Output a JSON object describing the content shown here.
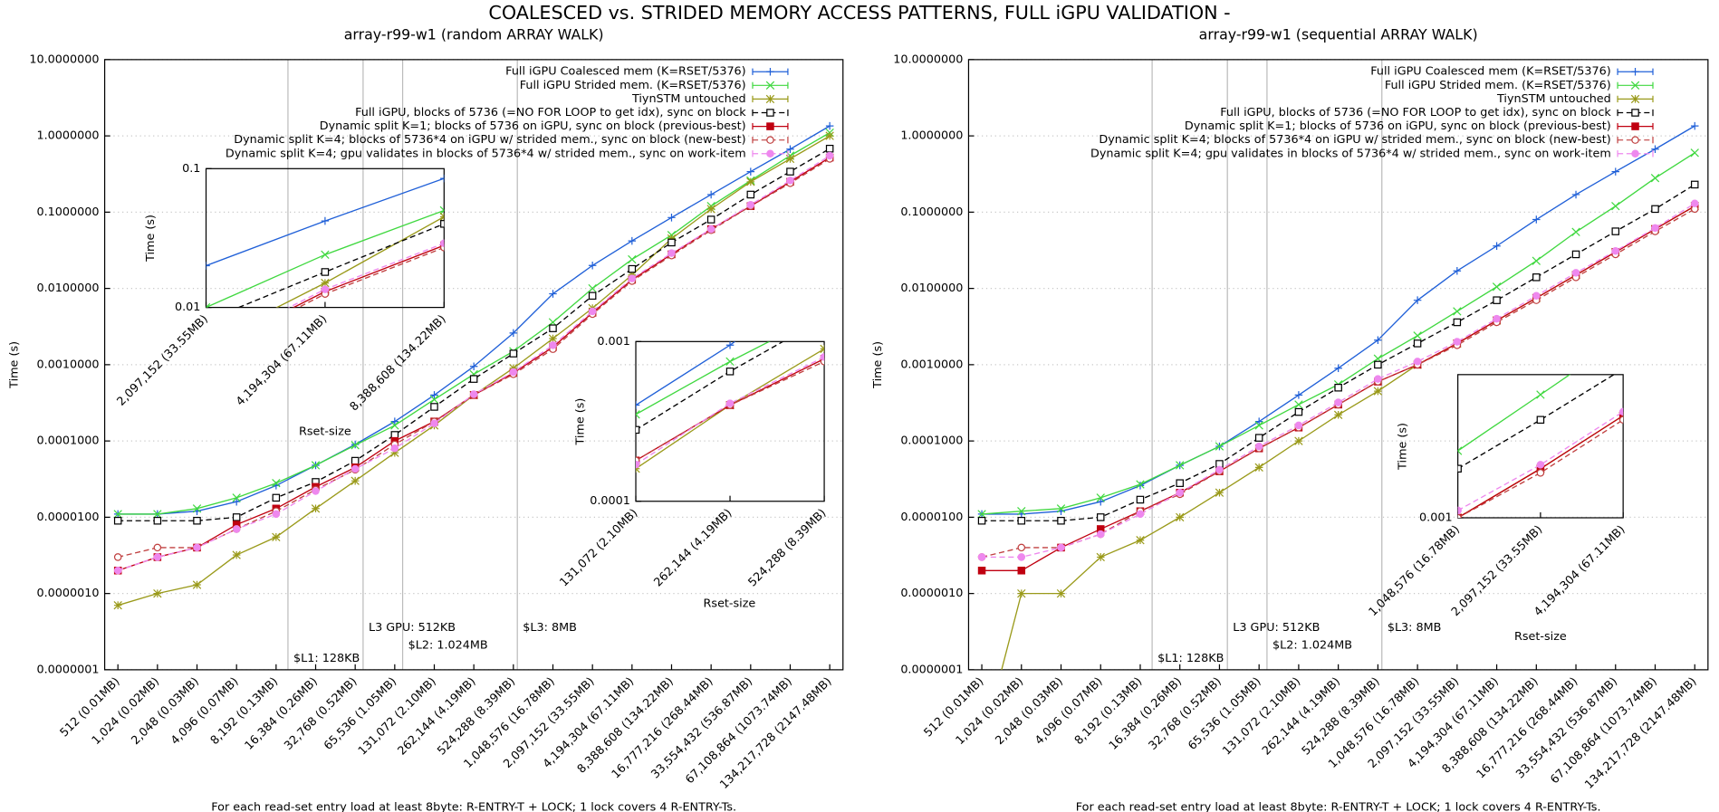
{
  "title": "COALESCED vs. STRIDED MEMORY ACCESS PATTERNS, FULL iGPU VALIDATION -",
  "chart_data": [
    {
      "type": "line",
      "title": "array-r99-w1 (random ARRAY WALK)",
      "xlabel": "For each read-set entry load at least 8byte: R-ENTRY-T + LOCK; 1 lock covers 4 R-ENTRY-Ts.",
      "ylabel": "Time (s)",
      "log_y": true,
      "grid": true,
      "legend": "top-right",
      "ylim": [
        1e-07,
        10
      ],
      "yticks": [
        {
          "value": 10,
          "label": "10.0000000"
        },
        {
          "value": 1,
          "label": "1.0000000"
        },
        {
          "value": 0.1,
          "label": "0.1000000"
        },
        {
          "value": 0.01,
          "label": "0.0100000"
        },
        {
          "value": 0.001,
          "label": "0.0010000"
        },
        {
          "value": 0.0001,
          "label": "0.0001000"
        },
        {
          "value": 1e-05,
          "label": "0.0000100"
        },
        {
          "value": 1e-06,
          "label": "0.0000010"
        },
        {
          "value": 1e-07,
          "label": "0.0000001"
        }
      ],
      "categories": [
        "512 (0.01MB)",
        "1,024 (0.02MB)",
        "2,048 (0.03MB)",
        "4,096 (0.07MB)",
        "8,192 (0.13MB)",
        "16,384 (0.26MB)",
        "32,768 (0.52MB)",
        "65,536 (1.05MB)",
        "131,072 (2.10MB)",
        "262,144 (4.19MB)",
        "524,288 (8.39MB)",
        "1,048,576 (16.78MB)",
        "2,097,152 (33.55MB)",
        "4,194,304 (67.11MB)",
        "8,388,608 (134.22MB)",
        "16,777,216 (268.44MB)",
        "33,554,432 (536.87MB)",
        "67,108,864 (1073.74MB)",
        "134,217,728 (2147.48MB)"
      ],
      "annotations": [
        {
          "x": 4.3,
          "text": "$L1: 128KB"
        },
        {
          "x": 6.2,
          "text": "L3 GPU: 512KB"
        },
        {
          "x": 7.2,
          "text": "$L2: 1.024MB"
        },
        {
          "x": 10.1,
          "text": "$L3: 8MB"
        }
      ],
      "series": [
        {
          "name": "Full iGPU Coalesced mem (K=RSET/5376)",
          "color": "#2060d8",
          "marker": "plus",
          "dash": false,
          "values": [
            1.1e-05,
            1.1e-05,
            1.2e-05,
            1.6e-05,
            2.6e-05,
            4.8e-05,
            9e-05,
            0.00018,
            0.0004,
            0.00095,
            0.0026,
            0.0085,
            0.02,
            0.042,
            0.085,
            0.17,
            0.34,
            0.67,
            1.35
          ]
        },
        {
          "name": "Full iGPU Strided mem. (K=RSET/5376)",
          "color": "#40d840",
          "marker": "cross",
          "dash": false,
          "values": [
            1.1e-05,
            1.1e-05,
            1.3e-05,
            1.8e-05,
            2.8e-05,
            4.8e-05,
            8.8e-05,
            0.00016,
            0.00035,
            0.00075,
            0.0015,
            0.0036,
            0.01,
            0.024,
            0.05,
            0.12,
            0.26,
            0.55,
            1.1
          ]
        },
        {
          "name": "TiynSTM untouched",
          "color": "#9a9a1a",
          "marker": "star",
          "dash": false,
          "values": [
            7e-07,
            1e-06,
            1.3e-06,
            3.2e-06,
            5.5e-06,
            1.3e-05,
            3e-05,
            7e-05,
            0.00016,
            0.0004,
            0.0009,
            0.0022,
            0.0055,
            0.015,
            0.045,
            0.11,
            0.25,
            0.5,
            1.0
          ]
        },
        {
          "name": "Full iGPU, blocks of 5736 (=NO FOR LOOP to get idx), sync on block",
          "color": "#000000",
          "marker": "square-open",
          "dash": true,
          "values": [
            9e-06,
            9e-06,
            9e-06,
            1e-05,
            1.8e-05,
            2.9e-05,
            5.5e-05,
            0.00012,
            0.00028,
            0.00065,
            0.0014,
            0.003,
            0.008,
            0.018,
            0.04,
            0.08,
            0.17,
            0.34,
            0.68
          ]
        },
        {
          "name": "Dynamic split K=1; blocks of 5736 on iGPU, sync on block (previous-best)",
          "color": "#c00010",
          "marker": "square",
          "dash": false,
          "values": [
            2e-06,
            3e-06,
            4e-06,
            8e-06,
            1.3e-05,
            2.5e-05,
            4.5e-05,
            0.0001,
            0.00018,
            0.0004,
            0.00078,
            0.0017,
            0.0048,
            0.013,
            0.028,
            0.06,
            0.12,
            0.25,
            0.52
          ]
        },
        {
          "name": "Dynamic split K=4; blocks of 5736*4 on iGPU w/ strided mem., sync on block (new-best)",
          "color": "#c04040",
          "marker": "circle-open",
          "dash": true,
          "values": [
            3e-06,
            4e-06,
            4e-06,
            7e-06,
            1.2e-05,
            2.3e-05,
            4.2e-05,
            9e-05,
            0.00018,
            0.0004,
            0.00075,
            0.0016,
            0.0046,
            0.0125,
            0.027,
            0.058,
            0.12,
            0.24,
            0.5
          ]
        },
        {
          "name": "Dynamic split K=4; gpu validates in blocks of 5736*4 w/ strided mem., sync on work-item",
          "color": "#ee88ee",
          "marker": "circle",
          "dash": true,
          "values": [
            2e-06,
            3e-06,
            4e-06,
            7e-06,
            1.1e-05,
            2.2e-05,
            4.3e-05,
            8e-05,
            0.00017,
            0.00041,
            0.0008,
            0.0018,
            0.005,
            0.0135,
            0.029,
            0.06,
            0.125,
            0.26,
            0.55
          ]
        }
      ]
    },
    {
      "type": "line",
      "title": "array-r99-w1 (sequential ARRAY WALK)",
      "xlabel": "For each read-set entry load at least 8byte: R-ENTRY-T + LOCK; 1 lock covers 4 R-ENTRY-Ts.",
      "ylabel": "Time (s)",
      "log_y": true,
      "grid": true,
      "legend": "top-right",
      "ylim": [
        1e-07,
        10
      ],
      "yticks": [
        {
          "value": 10,
          "label": "10.0000000"
        },
        {
          "value": 1,
          "label": "1.0000000"
        },
        {
          "value": 0.1,
          "label": "0.1000000"
        },
        {
          "value": 0.01,
          "label": "0.0100000"
        },
        {
          "value": 0.001,
          "label": "0.0010000"
        },
        {
          "value": 0.0001,
          "label": "0.0001000"
        },
        {
          "value": 1e-05,
          "label": "0.0000100"
        },
        {
          "value": 1e-06,
          "label": "0.0000010"
        },
        {
          "value": 1e-07,
          "label": "0.0000001"
        }
      ],
      "categories": [
        "512 (0.01MB)",
        "1,024 (0.02MB)",
        "2,048 (0.03MB)",
        "4,096 (0.07MB)",
        "8,192 (0.13MB)",
        "16,384 (0.26MB)",
        "32,768 (0.52MB)",
        "65,536 (1.05MB)",
        "131,072 (2.10MB)",
        "262,144 (4.19MB)",
        "524,288 (8.39MB)",
        "1,048,576 (16.78MB)",
        "2,097,152 (33.55MB)",
        "4,194,304 (67.11MB)",
        "8,388,608 (134.22MB)",
        "16,777,216 (268.44MB)",
        "33,554,432 (536.87MB)",
        "67,108,864 (1073.74MB)",
        "134,217,728 (2147.48MB)"
      ],
      "annotations": [
        {
          "x": 4.3,
          "text": "$L1: 128KB"
        },
        {
          "x": 6.2,
          "text": "L3 GPU: 512KB"
        },
        {
          "x": 7.2,
          "text": "$L2: 1.024MB"
        },
        {
          "x": 10.1,
          "text": "$L3: 8MB"
        }
      ],
      "series": [
        {
          "name": "Full iGPU Coalesced mem (K=RSET/5376)",
          "color": "#2060d8",
          "marker": "plus",
          "dash": false,
          "values": [
            1.1e-05,
            1.1e-05,
            1.2e-05,
            1.6e-05,
            2.6e-05,
            4.8e-05,
            8.5e-05,
            0.00018,
            0.0004,
            0.0009,
            0.0021,
            0.007,
            0.017,
            0.036,
            0.08,
            0.17,
            0.34,
            0.67,
            1.35
          ]
        },
        {
          "name": "Full iGPU Strided mem. (K=RSET/5376)",
          "color": "#40d840",
          "marker": "cross",
          "dash": false,
          "values": [
            1.1e-05,
            1.2e-05,
            1.3e-05,
            1.8e-05,
            2.7e-05,
            4.8e-05,
            8.5e-05,
            0.00016,
            0.0003,
            0.00055,
            0.0012,
            0.0024,
            0.005,
            0.0105,
            0.023,
            0.055,
            0.12,
            0.28,
            0.6
          ]
        },
        {
          "name": "TiynSTM untouched",
          "color": "#9a9a1a",
          "marker": "star",
          "dash": false,
          "values": [
            1e-08,
            1e-06,
            1e-06,
            3e-06,
            5e-06,
            1e-05,
            2.1e-05,
            4.5e-05,
            0.0001,
            0.00022,
            0.00045,
            0.001,
            0.0019,
            0.0038,
            0.0075,
            0.015,
            0.03,
            0.06,
            0.12
          ]
        },
        {
          "name": "Full iGPU, blocks of 5736 (=NO FOR LOOP to get idx), sync on block",
          "color": "#000000",
          "marker": "square-open",
          "dash": true,
          "values": [
            9e-06,
            9e-06,
            9e-06,
            1e-05,
            1.7e-05,
            2.8e-05,
            5e-05,
            0.00011,
            0.00024,
            0.0005,
            0.001,
            0.0019,
            0.0036,
            0.007,
            0.014,
            0.028,
            0.056,
            0.11,
            0.23
          ]
        },
        {
          "name": "Dynamic split K=1; blocks of 5736 on iGPU, sync on block (previous-best)",
          "color": "#c00010",
          "marker": "square",
          "dash": false,
          "values": [
            2e-06,
            2e-06,
            4e-06,
            7e-06,
            1.2e-05,
            2.1e-05,
            4e-05,
            8e-05,
            0.00015,
            0.0003,
            0.0006,
            0.001,
            0.0019,
            0.0038,
            0.0075,
            0.015,
            0.03,
            0.06,
            0.12
          ]
        },
        {
          "name": "Dynamic split K=4; blocks of 5736*4 on iGPU w/ strided mem., sync on block (new-best)",
          "color": "#c04040",
          "marker": "circle-open",
          "dash": true,
          "values": [
            3e-06,
            4e-06,
            4e-06,
            6e-06,
            1.2e-05,
            2e-05,
            4e-05,
            8e-05,
            0.00015,
            0.0003,
            0.0006,
            0.001,
            0.0018,
            0.0036,
            0.007,
            0.014,
            0.028,
            0.056,
            0.11
          ]
        },
        {
          "name": "Dynamic split K=4; gpu validates in blocks of 5736*4 w/ strided mem., sync on work-item",
          "color": "#ee88ee",
          "marker": "circle",
          "dash": true,
          "values": [
            3e-06,
            3e-06,
            4e-06,
            6e-06,
            1.1e-05,
            2.1e-05,
            4.2e-05,
            8.5e-05,
            0.00016,
            0.00032,
            0.00065,
            0.0011,
            0.002,
            0.004,
            0.008,
            0.016,
            0.031,
            0.062,
            0.13
          ]
        }
      ]
    },
    {
      "type": "line",
      "xlabel": "Rset-size",
      "ylabel": "Time (s)",
      "log_y": true,
      "grid": false,
      "ylim": [
        0.01,
        0.1
      ],
      "yticks": [
        0.01,
        0.1
      ],
      "categories": [
        "2,097,152 (33.55MB)",
        "4,194,304 (67.11MB)",
        "8,388,608 (134.22MB)"
      ],
      "series": [
        {
          "color": "#2060d8",
          "marker": "plus",
          "dash": false,
          "values": [
            0.02,
            0.042,
            0.085
          ]
        },
        {
          "color": "#40d840",
          "marker": "cross",
          "dash": false,
          "values": [
            0.01,
            0.024,
            0.05
          ]
        },
        {
          "color": "#9a9a1a",
          "marker": "star",
          "dash": false,
          "values": [
            0.0055,
            0.015,
            0.045
          ]
        },
        {
          "color": "#000000",
          "marker": "square-open",
          "dash": true,
          "values": [
            0.008,
            0.018,
            0.04
          ]
        },
        {
          "color": "#c00010",
          "marker": "square",
          "dash": false,
          "values": [
            0.0048,
            0.013,
            0.028
          ]
        },
        {
          "color": "#c04040",
          "marker": "circle-open",
          "dash": true,
          "values": [
            0.0046,
            0.0125,
            0.027
          ]
        },
        {
          "color": "#ee88ee",
          "marker": "circle",
          "dash": true,
          "values": [
            0.005,
            0.0135,
            0.029
          ]
        }
      ]
    },
    {
      "type": "line",
      "xlabel": "Rset-size",
      "ylabel": "Time (s)",
      "log_y": true,
      "grid": false,
      "ylim": [
        0.0001,
        0.001
      ],
      "yticks": [
        0.0001,
        0.001
      ],
      "categories": [
        "131,072 (2.10MB)",
        "262,144 (4.19MB)",
        "524,288 (8.39MB)"
      ],
      "series": [
        {
          "color": "#2060d8",
          "marker": "plus",
          "dash": false,
          "values": [
            0.0004,
            0.00095,
            0.0026
          ]
        },
        {
          "color": "#40d840",
          "marker": "cross",
          "dash": false,
          "values": [
            0.00035,
            0.00075,
            0.0015
          ]
        },
        {
          "color": "#9a9a1a",
          "marker": "star",
          "dash": false,
          "values": [
            0.00016,
            0.0004,
            0.0009
          ]
        },
        {
          "color": "#000000",
          "marker": "square-open",
          "dash": true,
          "values": [
            0.00028,
            0.00065,
            0.0014
          ]
        },
        {
          "color": "#c00010",
          "marker": "square",
          "dash": false,
          "values": [
            0.00018,
            0.0004,
            0.00078
          ]
        },
        {
          "color": "#c04040",
          "marker": "circle-open",
          "dash": true,
          "values": [
            0.00018,
            0.0004,
            0.00075
          ]
        },
        {
          "color": "#ee88ee",
          "marker": "circle",
          "dash": true,
          "values": [
            0.00017,
            0.00041,
            0.0008
          ]
        }
      ]
    },
    {
      "type": "line",
      "xlabel": "Rset-size",
      "ylabel": "Time (s)",
      "log_y": true,
      "grid": false,
      "ylim": [
        0.001,
        0.0065
      ],
      "yticks": [
        0.001
      ],
      "categories": [
        "1,048,576 (16.78MB)",
        "2,097,152 (33.55MB)",
        "4,194,304 (67.11MB)"
      ],
      "series": [
        {
          "color": "#2060d8",
          "marker": "plus",
          "dash": false,
          "values": [
            0.007,
            0.017,
            0.036
          ]
        },
        {
          "color": "#40d840",
          "marker": "cross",
          "dash": false,
          "values": [
            0.0024,
            0.005,
            0.0105
          ]
        },
        {
          "color": "#9a9a1a",
          "marker": "star",
          "dash": false,
          "values": [
            0.001,
            0.0019,
            0.0038
          ]
        },
        {
          "color": "#000000",
          "marker": "square-open",
          "dash": true,
          "values": [
            0.0019,
            0.0036,
            0.007
          ]
        },
        {
          "color": "#c00010",
          "marker": "square",
          "dash": false,
          "values": [
            0.001,
            0.0019,
            0.0038
          ]
        },
        {
          "color": "#c04040",
          "marker": "circle-open",
          "dash": true,
          "values": [
            0.001,
            0.0018,
            0.0036
          ]
        },
        {
          "color": "#ee88ee",
          "marker": "circle",
          "dash": true,
          "values": [
            0.0011,
            0.002,
            0.004
          ]
        }
      ]
    }
  ]
}
